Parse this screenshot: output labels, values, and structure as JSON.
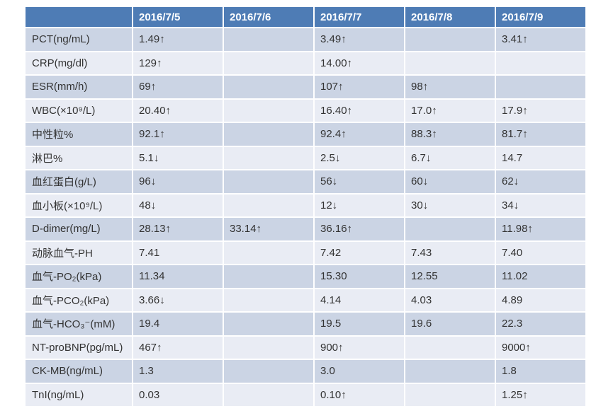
{
  "colors": {
    "header_bg": "#4e7cb5",
    "header_text": "#ffffff",
    "band_dark": "#cbd4e4",
    "band_light": "#e9ecf4",
    "body_text": "#333333",
    "page_bg": "#ffffff"
  },
  "chart_data": {
    "type": "table",
    "columns": [
      "",
      "2016/7/5",
      "2016/7/6",
      "2016/7/7",
      "2016/7/8",
      "2016/7/9"
    ],
    "rows": [
      {
        "label": "PCT(ng/mL)",
        "values": [
          "1.49↑",
          "",
          "3.49↑",
          "",
          "3.41↑"
        ]
      },
      {
        "label": "CRP(mg/dl)",
        "values": [
          "129↑",
          "",
          "14.00↑",
          "",
          ""
        ]
      },
      {
        "label": "ESR(mm/h)",
        "values": [
          "69↑",
          "",
          "107↑",
          "98↑",
          ""
        ]
      },
      {
        "label": "WBC(×10⁹/L)",
        "values": [
          "20.40↑",
          "",
          "16.40↑",
          "17.0↑",
          "17.9↑"
        ]
      },
      {
        "label": "中性粒%",
        "values": [
          "92.1↑",
          "",
          "92.4↑",
          "88.3↑",
          "81.7↑"
        ]
      },
      {
        "label": "淋巴%",
        "values": [
          "5.1↓",
          "",
          "2.5↓",
          "6.7↓",
          "14.7"
        ]
      },
      {
        "label": "血红蛋白(g/L)",
        "values": [
          "96↓",
          "",
          "56↓",
          "60↓",
          "62↓"
        ]
      },
      {
        "label": "血小板(×10⁹/L)",
        "values": [
          "48↓",
          "",
          "12↓",
          "30↓",
          "34↓"
        ]
      },
      {
        "label": "D-dimer(mg/L)",
        "values": [
          "28.13↑",
          "33.14↑",
          "36.16↑",
          "",
          "11.98↑"
        ]
      },
      {
        "label": "动脉血气-PH",
        "values": [
          "7.41",
          "",
          "7.42",
          "7.43",
          "7.40"
        ]
      },
      {
        "label": "血气-PO₂(kPa)",
        "values": [
          "11.34",
          "",
          "15.30",
          "12.55",
          "11.02"
        ]
      },
      {
        "label": "血气-PCO₂(kPa)",
        "values": [
          "3.66↓",
          "",
          "4.14",
          "4.03",
          "4.89"
        ]
      },
      {
        "label": "血气-HCO₃⁻(mM)",
        "values": [
          "19.4",
          "",
          "19.5",
          "19.6",
          "22.3"
        ]
      },
      {
        "label": "NT-proBNP(pg/mL)",
        "values": [
          "467↑",
          "",
          "900↑",
          "",
          "9000↑"
        ]
      },
      {
        "label": "CK-MB(ng/mL)",
        "values": [
          "1.3",
          "",
          "3.0",
          "",
          "1.8"
        ]
      },
      {
        "label": "TnI(ng/mL)",
        "values": [
          "0.03",
          "",
          "0.10↑",
          "",
          "1.25↑"
        ]
      }
    ]
  }
}
